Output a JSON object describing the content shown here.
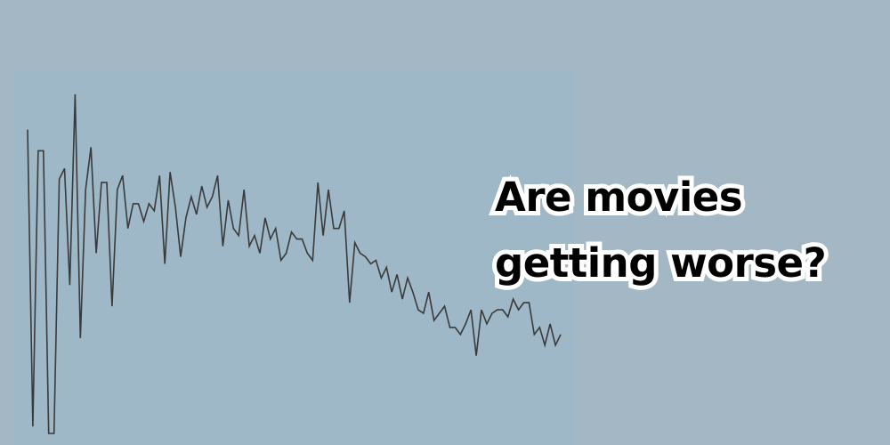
{
  "headline": {
    "line1": "Are movies",
    "line2": "getting worse?"
  },
  "colors": {
    "background": "#a3b7c4",
    "plot_background": "#9eb8c7",
    "line": "#3a3a3a",
    "headline_fill": "#000000",
    "headline_outline": "#ffffff"
  },
  "chart_data": {
    "type": "line",
    "title": "",
    "xlabel": "",
    "ylabel": "",
    "grid": false,
    "axes_visible": false,
    "ylim": [
      0,
      10
    ],
    "series": [
      {
        "values": [
          8.6,
          0.2,
          8.0,
          8.0,
          0.0,
          0.0,
          7.2,
          7.5,
          4.2,
          9.6,
          2.7,
          6.9,
          8.1,
          5.1,
          7.1,
          7.1,
          3.6,
          6.9,
          7.3,
          5.8,
          6.5,
          6.5,
          6.0,
          6.5,
          6.3,
          7.3,
          4.8,
          7.4,
          6.4,
          5.0,
          6.1,
          6.7,
          6.2,
          7.0,
          6.4,
          6.7,
          7.3,
          5.3,
          6.6,
          5.8,
          5.6,
          6.9,
          5.3,
          5.6,
          5.1,
          6.1,
          5.5,
          5.8,
          4.9,
          5.1,
          5.7,
          5.5,
          5.5,
          5.1,
          4.9,
          7.1,
          5.6,
          6.9,
          5.8,
          5.8,
          6.3,
          3.7,
          5.4,
          5.1,
          5.0,
          4.8,
          4.9,
          4.4,
          4.7,
          4.0,
          4.5,
          3.8,
          4.4,
          4.0,
          3.5,
          3.4,
          4.0,
          3.2,
          3.4,
          3.6,
          3.0,
          3.0,
          2.8,
          3.1,
          3.5,
          2.2,
          3.5,
          3.1,
          3.4,
          3.5,
          3.5,
          3.3,
          3.8,
          3.5,
          3.7,
          3.7,
          2.8,
          3.0,
          2.5,
          3.1,
          2.5,
          2.8
        ]
      }
    ]
  }
}
